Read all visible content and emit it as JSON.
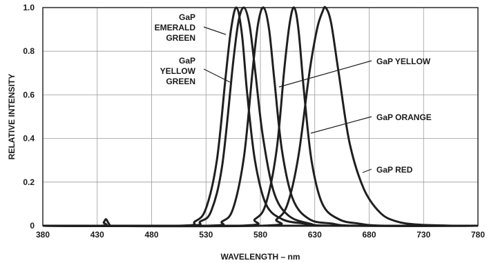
{
  "chart_data": {
    "type": "line",
    "xlabel": "WAVELENGTH – nm",
    "ylabel": "RELATIVE INTENSITY",
    "xlim": [
      380,
      780
    ],
    "ylim": [
      0,
      1.0
    ],
    "x_ticks": [
      380,
      430,
      480,
      530,
      580,
      630,
      680,
      730,
      780
    ],
    "y_ticks": [
      {
        "value": 0,
        "label": "0"
      },
      {
        "value": 0.2,
        "label": "0.2"
      },
      {
        "value": 0.4,
        "label": "0.4"
      },
      {
        "value": 0.6,
        "label": "0.6"
      },
      {
        "value": 0.8,
        "label": "0.8"
      },
      {
        "value": 1.0,
        "label": "1.0"
      }
    ],
    "grid": true,
    "series": [
      {
        "name": "GaP EMERALD GREEN",
        "peak_nm": 558,
        "x": [
          505,
          520,
          530,
          540,
          548,
          553,
          558,
          563,
          568,
          575,
          585,
          600,
          620,
          640
        ],
        "y": [
          0.0,
          0.02,
          0.08,
          0.3,
          0.68,
          0.9,
          1.0,
          0.88,
          0.6,
          0.3,
          0.1,
          0.03,
          0.01,
          0.0
        ]
      },
      {
        "name": "GaP YELLOW GREEN",
        "peak_nm": 565,
        "x": [
          510,
          525,
          535,
          545,
          555,
          560,
          565,
          570,
          575,
          582,
          592,
          605,
          625,
          650
        ],
        "y": [
          0.0,
          0.02,
          0.07,
          0.28,
          0.75,
          0.94,
          1.0,
          0.92,
          0.72,
          0.42,
          0.16,
          0.05,
          0.01,
          0.0
        ]
      },
      {
        "name": "GaP YELLOW",
        "peak_nm": 583,
        "x": [
          530,
          545,
          555,
          565,
          573,
          578,
          583,
          588,
          593,
          600,
          610,
          625,
          645,
          670
        ],
        "y": [
          0.0,
          0.02,
          0.08,
          0.32,
          0.72,
          0.93,
          1.0,
          0.9,
          0.66,
          0.34,
          0.12,
          0.03,
          0.01,
          0.0
        ]
      },
      {
        "name": "GaP ORANGE",
        "peak_nm": 611,
        "x": [
          560,
          575,
          585,
          595,
          602,
          607,
          611,
          615,
          620,
          627,
          637,
          652,
          670,
          695
        ],
        "y": [
          0.0,
          0.03,
          0.1,
          0.35,
          0.72,
          0.93,
          1.0,
          0.9,
          0.62,
          0.3,
          0.1,
          0.03,
          0.01,
          0.0
        ]
      },
      {
        "name": "GaP RED",
        "peak_nm": 640,
        "x": [
          580,
          595,
          605,
          615,
          625,
          632,
          637,
          640,
          645,
          652,
          662,
          675,
          690,
          705,
          725,
          760
        ],
        "y": [
          0.0,
          0.03,
          0.1,
          0.32,
          0.7,
          0.9,
          0.98,
          1.0,
          0.93,
          0.7,
          0.38,
          0.17,
          0.06,
          0.02,
          0.005,
          0.0
        ]
      },
      {
        "name": "",
        "x": [
          380,
          434,
          436,
          438,
          440,
          442,
          444,
          500
        ],
        "y": [
          0.0,
          0.0,
          0.015,
          0.03,
          0.015,
          0.0,
          0.0,
          0.0
        ]
      }
    ],
    "annotations": [
      {
        "lines": [
          "GaP",
          "EMERALD",
          "GREEN"
        ],
        "series": "GaP EMERALD GREEN"
      },
      {
        "lines": [
          "GaP",
          "YELLOW",
          "GREEN"
        ],
        "series": "GaP YELLOW GREEN"
      },
      {
        "lines": [
          "GaP YELLOW"
        ],
        "series": "GaP YELLOW"
      },
      {
        "lines": [
          "GaP ORANGE"
        ],
        "series": "GaP ORANGE"
      },
      {
        "lines": [
          "GaP RED"
        ],
        "series": "GaP RED"
      }
    ]
  }
}
